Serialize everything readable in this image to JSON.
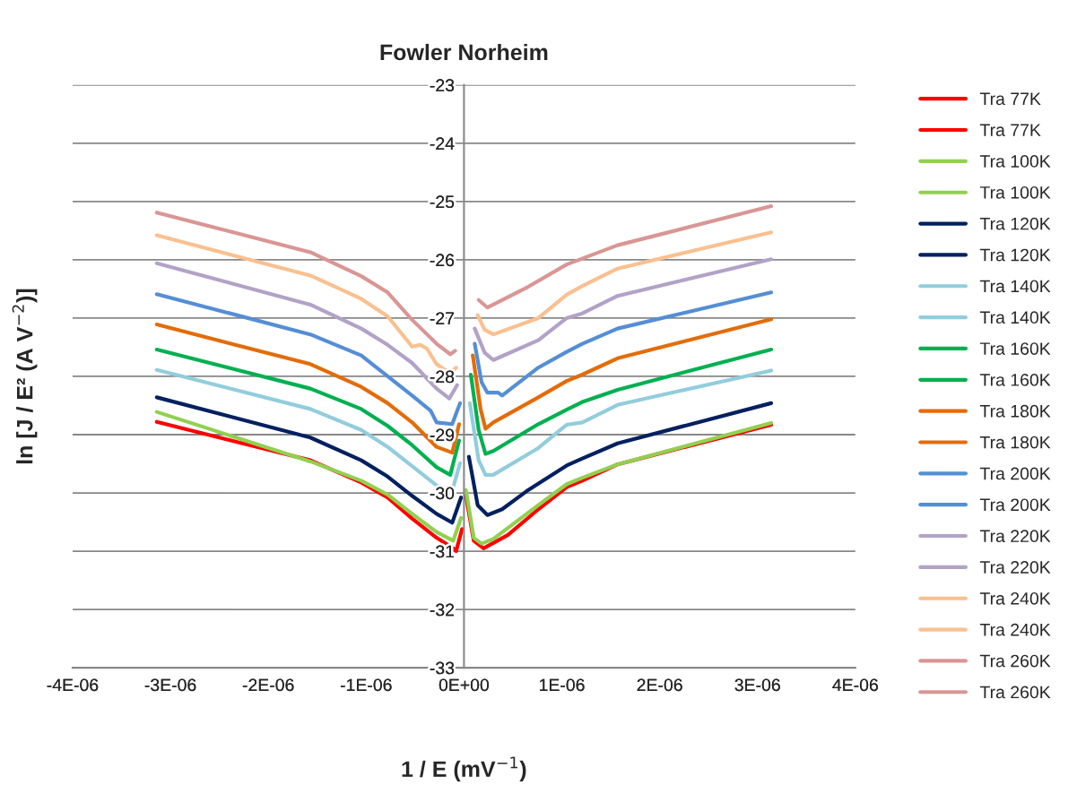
{
  "chart_data": {
    "type": "line",
    "title": "Fowler Norheim",
    "xlabel": "1 / E (mV$^{−1}$)",
    "ylabel": "ln [J / E² (A V$^{−2}$)]",
    "xlim": [
      -4e-06,
      4e-06
    ],
    "xticks": [
      {
        "value": -4e-06,
        "label": "-4E-06"
      },
      {
        "value": -3e-06,
        "label": "-3E-06"
      },
      {
        "value": -2e-06,
        "label": "-2E-06"
      },
      {
        "value": -1e-06,
        "label": "-1E-06"
      },
      {
        "value": 0,
        "label": "0E+00"
      },
      {
        "value": 1e-06,
        "label": "1E-06"
      },
      {
        "value": 2e-06,
        "label": "2E-06"
      },
      {
        "value": 3e-06,
        "label": "3E-06"
      },
      {
        "value": 4e-06,
        "label": "4E-06"
      }
    ],
    "ylim": [
      -33,
      -23
    ],
    "yticks": [
      -33,
      -32,
      -31,
      -30,
      -29,
      -28,
      -27,
      -26,
      -25,
      -24,
      -23
    ],
    "grid": "y",
    "legend": "right",
    "marker": "none",
    "line_style": "solid",
    "series": [
      {
        "name": "Tra 77K",
        "color": "#ff0000",
        "x": [
          -3.14e-06,
          -1.57e-06,
          -1.05e-06,
          -7.8e-07,
          -5.3e-07,
          -2.8e-07,
          -1.1e-07,
          -8e-08,
          -2e-08
        ],
        "values": [
          -28.78,
          -29.44,
          -29.82,
          -30.08,
          -30.44,
          -30.77,
          -30.95,
          -31.0,
          -30.62
        ]
      },
      {
        "name": "Tra 77K",
        "color": "#ff0000",
        "x": [
          2e-08,
          1e-07,
          2e-07,
          4.5e-07,
          7.6e-07,
          1.05e-06,
          1.21e-06,
          1.57e-06,
          3.14e-06
        ],
        "values": [
          -30.05,
          -30.82,
          -30.95,
          -30.72,
          -30.28,
          -29.9,
          -29.79,
          -29.51,
          -28.83
        ]
      },
      {
        "name": "Tra 100K",
        "color": "#92d050",
        "x": [
          -3.14e-06,
          -1.57e-06,
          -1.05e-06,
          -7.8e-07,
          -5.3e-07,
          -2.8e-07,
          -1.1e-07,
          -3e-08
        ],
        "values": [
          -28.61,
          -29.46,
          -29.79,
          -30.03,
          -30.36,
          -30.67,
          -30.82,
          -30.43
        ]
      },
      {
        "name": "Tra 100K",
        "color": "#92d050",
        "x": [
          2e-08,
          1e-07,
          1.8e-07,
          3e-07,
          7.6e-07,
          1.05e-06,
          1.21e-06,
          1.57e-06,
          3.14e-06
        ],
        "values": [
          -29.95,
          -30.77,
          -30.87,
          -30.79,
          -30.21,
          -29.85,
          -29.74,
          -29.51,
          -28.8
        ]
      },
      {
        "name": "Tra 120K",
        "color": "#002060",
        "x": [
          -3.14e-06,
          -1.57e-06,
          -1.05e-06,
          -7.8e-07,
          -5.3e-07,
          -2.8e-07,
          -1.2e-07,
          -3e-08
        ],
        "values": [
          -28.36,
          -29.05,
          -29.44,
          -29.72,
          -30.05,
          -30.36,
          -30.51,
          -30.08
        ]
      },
      {
        "name": "Tra 120K",
        "color": "#002060",
        "x": [
          5e-08,
          1.4e-07,
          2.4e-07,
          3.9e-07,
          6.4e-07,
          1.05e-06,
          1.21e-06,
          1.57e-06,
          3.14e-06
        ],
        "values": [
          -29.38,
          -30.21,
          -30.38,
          -30.28,
          -29.97,
          -29.53,
          -29.41,
          -29.15,
          -28.46
        ]
      },
      {
        "name": "Tra 140K",
        "color": "#92cddc",
        "x": [
          -3.14e-06,
          -1.57e-06,
          -1.05e-06,
          -7.8e-07,
          -5.3e-07,
          -2.8e-07,
          -1.4e-07,
          -4e-08
        ],
        "values": [
          -27.89,
          -28.56,
          -28.92,
          -29.21,
          -29.54,
          -29.87,
          -30.08,
          -29.49
        ]
      },
      {
        "name": "Tra 140K",
        "color": "#92cddc",
        "x": [
          6e-08,
          1.5e-07,
          2.2e-07,
          3e-07,
          7.6e-07,
          1.05e-06,
          1.21e-06,
          1.57e-06,
          3.14e-06
        ],
        "values": [
          -28.46,
          -29.44,
          -29.69,
          -29.69,
          -29.23,
          -28.83,
          -28.79,
          -28.49,
          -27.9
        ]
      },
      {
        "name": "Tra 160K",
        "color": "#00b050",
        "x": [
          -3.14e-06,
          -1.57e-06,
          -1.05e-06,
          -7.8e-07,
          -5.3e-07,
          -2.8e-07,
          -1.4e-07,
          -5e-08
        ],
        "values": [
          -27.54,
          -28.21,
          -28.56,
          -28.85,
          -29.18,
          -29.56,
          -29.69,
          -29.1
        ]
      },
      {
        "name": "Tra 160K",
        "color": "#00b050",
        "x": [
          7e-08,
          1.5e-07,
          2.2e-07,
          3e-07,
          7.6e-07,
          1.05e-06,
          1.21e-06,
          1.57e-06,
          3.14e-06
        ],
        "values": [
          -27.97,
          -28.92,
          -29.33,
          -29.28,
          -28.82,
          -28.57,
          -28.44,
          -28.23,
          -27.54
        ]
      },
      {
        "name": "Tra 180K",
        "color": "#e36c09",
        "x": [
          -3.14e-06,
          -1.57e-06,
          -1.05e-06,
          -7.8e-07,
          -5.3e-07,
          -2.8e-07,
          -1.2e-07,
          -5e-08
        ],
        "values": [
          -27.11,
          -27.79,
          -28.18,
          -28.46,
          -28.79,
          -29.21,
          -29.31,
          -28.82
        ]
      },
      {
        "name": "Tra 180K",
        "color": "#e36c09",
        "x": [
          9e-08,
          1.7e-07,
          2.2e-07,
          3e-07,
          7.6e-07,
          1.05e-06,
          1.21e-06,
          1.57e-06,
          3.14e-06
        ],
        "values": [
          -27.64,
          -28.56,
          -28.9,
          -28.79,
          -28.36,
          -28.08,
          -27.97,
          -27.69,
          -27.02
        ]
      },
      {
        "name": "Tra 200K",
        "color": "#558ed5",
        "x": [
          -3.14e-06,
          -1.57e-06,
          -1.05e-06,
          -7.8e-07,
          -5.3e-07,
          -3.4e-07,
          -2.8e-07,
          -1.2e-07,
          -4e-08
        ],
        "values": [
          -26.59,
          -27.28,
          -27.64,
          -28.0,
          -28.33,
          -28.59,
          -28.79,
          -28.82,
          -28.46
        ]
      },
      {
        "name": "Tra 200K",
        "color": "#558ed5",
        "x": [
          1.1e-07,
          1.8e-07,
          2.4e-07,
          3.5e-07,
          3.9e-07,
          7.6e-07,
          1.05e-06,
          1.21e-06,
          1.57e-06,
          3.14e-06
        ],
        "values": [
          -27.44,
          -28.1,
          -28.28,
          -28.28,
          -28.33,
          -27.85,
          -27.58,
          -27.44,
          -27.18,
          -26.56
        ]
      },
      {
        "name": "Tra 220K",
        "color": "#b3a2c7",
        "x": [
          -3.14e-06,
          -1.57e-06,
          -1.05e-06,
          -7.8e-07,
          -5.3e-07,
          -2.8e-07,
          -1.5e-07,
          -7e-08
        ],
        "values": [
          -26.06,
          -26.77,
          -27.18,
          -27.46,
          -27.77,
          -28.21,
          -28.38,
          -28.15
        ]
      },
      {
        "name": "Tra 220K",
        "color": "#b3a2c7",
        "x": [
          1.1e-07,
          2.1e-07,
          3e-07,
          7.6e-07,
          1.05e-06,
          1.21e-06,
          1.57e-06,
          3.14e-06
        ],
        "values": [
          -27.18,
          -27.59,
          -27.72,
          -27.38,
          -27.0,
          -26.92,
          -26.62,
          -25.99
        ]
      },
      {
        "name": "Tra 240K",
        "color": "#fac090",
        "x": [
          -3.14e-06,
          -1.57e-06,
          -1.05e-06,
          -7.8e-07,
          -5.3e-07,
          -4.5e-07,
          -3.8e-07,
          -2.8e-07,
          -1.4e-07,
          -8e-08
        ],
        "values": [
          -25.58,
          -26.27,
          -26.67,
          -26.97,
          -27.49,
          -27.46,
          -27.52,
          -27.79,
          -27.95,
          -27.85
        ]
      },
      {
        "name": "Tra 240K",
        "color": "#fac090",
        "x": [
          1.4e-07,
          2.1e-07,
          3e-07,
          7.6e-07,
          1.05e-06,
          1.21e-06,
          1.57e-06,
          3.14e-06
        ],
        "values": [
          -26.95,
          -27.2,
          -27.28,
          -27.0,
          -26.6,
          -26.45,
          -26.15,
          -25.53
        ]
      },
      {
        "name": "Tra 260K",
        "color": "#d99694",
        "x": [
          -3.14e-06,
          -1.57e-06,
          -1.05e-06,
          -7.8e-07,
          -5.3e-07,
          -2.8e-07,
          -1.4e-07,
          -9e-08
        ],
        "values": [
          -25.19,
          -25.87,
          -26.28,
          -26.56,
          -27.03,
          -27.44,
          -27.62,
          -27.56
        ]
      },
      {
        "name": "Tra 260K",
        "color": "#d99694",
        "x": [
          1.5e-07,
          2.4e-07,
          6.6e-07,
          1.05e-06,
          1.57e-06,
          3.14e-06
        ],
        "values": [
          -26.69,
          -26.82,
          -26.46,
          -26.08,
          -25.75,
          -25.08
        ]
      }
    ]
  }
}
